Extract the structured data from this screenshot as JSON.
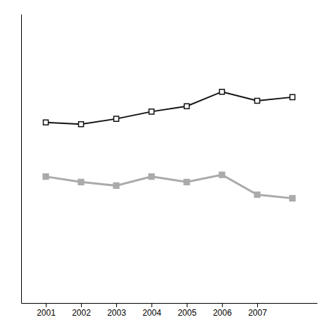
{
  "chart_data": {
    "type": "line",
    "x": [
      2001,
      2002,
      2003,
      2004,
      2005,
      2006,
      2007,
      2008
    ],
    "series": [
      {
        "color": "#111111",
        "marker": "square",
        "values": [
          5.0,
          4.95,
          5.1,
          5.3,
          5.45,
          5.85,
          5.6,
          5.7
        ]
      },
      {
        "color": "#aaaaaa",
        "marker": "square",
        "values": [
          3.5,
          3.35,
          3.25,
          3.5,
          3.35,
          3.55,
          3.0,
          2.9
        ]
      }
    ],
    "xlim": [
      2000.3,
      2008.7
    ],
    "ylim": [
      0.0,
      8.0
    ],
    "xticks": [
      2001,
      2002,
      2003,
      2004,
      2005,
      2006,
      2007
    ],
    "grid": false,
    "tick_labels": "x"
  }
}
